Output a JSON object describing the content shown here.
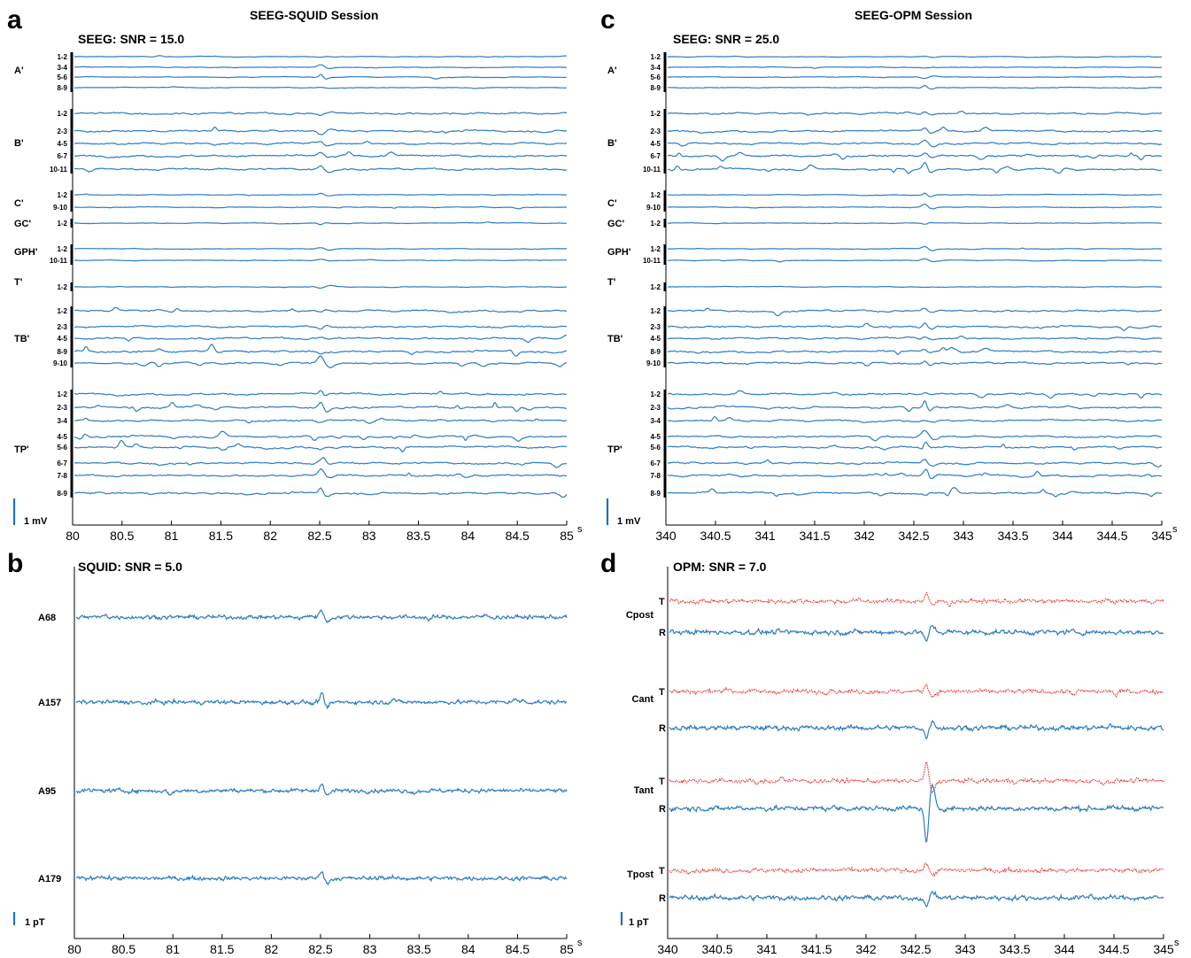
{
  "colors": {
    "trace": "#2f7dc0",
    "radial_trace": "#2f7dc0",
    "tangential_trace": "#e8342c",
    "axis": "#000000",
    "scalebar": "#1f6fbf"
  },
  "panel_labels": {
    "a": "a",
    "b": "b",
    "c": "c",
    "d": "d"
  },
  "session_titles": {
    "squid": "SEEG-SQUID Session",
    "opm": "SEEG-OPM Session"
  },
  "chart_data": [
    {
      "id": "a",
      "type": "line",
      "title": "SEEG: SNR = 15.0",
      "xlabel": "s",
      "xlim": [
        80,
        85
      ],
      "xticks": [
        "80",
        "80.5",
        "81",
        "81.5",
        "82",
        "82.5",
        "83",
        "83.5",
        "84",
        "84.5",
        "85"
      ],
      "scalebar_label": "1 mV",
      "event_x": 82.5,
      "groups": [
        {
          "name": "A'",
          "channels": [
            "1-2",
            "3-4",
            "5-6",
            "8-9"
          ]
        },
        {
          "name": "B'",
          "channels": [
            "1-2",
            "2-3",
            "4-5",
            "6-7",
            "10-11"
          ]
        },
        {
          "name": "C'",
          "channels": [
            "1-2",
            "9-10"
          ]
        },
        {
          "name": "GC'",
          "channels": [
            "1-2"
          ]
        },
        {
          "name": "GPH'",
          "channels": [
            "1-2",
            "10-11"
          ]
        },
        {
          "name": "T'",
          "channels": [
            "1-2"
          ]
        },
        {
          "name": "TB'",
          "channels": [
            "1-2",
            "2-3",
            "4-5",
            "8-9",
            "9-10"
          ]
        },
        {
          "name": "TP'",
          "channels": [
            "1-2",
            "2-3",
            "3-4",
            "4-5",
            "5-6",
            "6-7",
            "7-8",
            "8-9"
          ]
        }
      ]
    },
    {
      "id": "b",
      "type": "line",
      "title": "SQUID: SNR = 5.0",
      "xlabel": "s",
      "xlim": [
        80,
        85
      ],
      "xticks": [
        "80",
        "80.5",
        "81",
        "81.5",
        "82",
        "82.5",
        "83",
        "83.5",
        "84",
        "84.5",
        "85"
      ],
      "scalebar_label": "1 pT",
      "event_x": 82.5,
      "channels": [
        "A68",
        "A157",
        "A95",
        "A179"
      ]
    },
    {
      "id": "c",
      "type": "line",
      "title": "SEEG: SNR = 25.0",
      "xlabel": "s",
      "xlim": [
        340,
        345
      ],
      "xticks": [
        "340",
        "340.5",
        "341",
        "341.5",
        "342",
        "342.5",
        "343",
        "343.5",
        "344",
        "344.5",
        "345"
      ],
      "scalebar_label": "1 mV",
      "event_x": 342.6,
      "groups": [
        {
          "name": "A'",
          "channels": [
            "1-2",
            "3-4",
            "5-6",
            "8-9"
          ]
        },
        {
          "name": "B'",
          "channels": [
            "1-2",
            "2-3",
            "4-5",
            "6-7",
            "10-11"
          ]
        },
        {
          "name": "C'",
          "channels": [
            "1-2",
            "9-10"
          ]
        },
        {
          "name": "GC'",
          "channels": [
            "1-2"
          ]
        },
        {
          "name": "GPH'",
          "channels": [
            "1-2",
            "10-11"
          ]
        },
        {
          "name": "T'",
          "channels": [
            "1-2"
          ]
        },
        {
          "name": "TB'",
          "channels": [
            "1-2",
            "2-3",
            "4-5",
            "8-9",
            "9-10"
          ]
        },
        {
          "name": "TP'",
          "channels": [
            "1-2",
            "2-3",
            "3-4",
            "4-5",
            "5-6",
            "6-7",
            "7-8",
            "8-9"
          ]
        }
      ]
    },
    {
      "id": "d",
      "type": "line",
      "title": "OPM: SNR = 7.0",
      "xlabel": "s",
      "xlim": [
        340,
        345
      ],
      "xticks": [
        "340",
        "340.5",
        "341",
        "341.5",
        "342",
        "342.5",
        "343",
        "343.5",
        "344",
        "344.5",
        "345"
      ],
      "scalebar_label": "1 pT",
      "event_x": 342.6,
      "sensors": [
        {
          "name": "Cpost",
          "components": [
            "T",
            "R"
          ]
        },
        {
          "name": "Cant",
          "components": [
            "T",
            "R"
          ]
        },
        {
          "name": "Tant",
          "components": [
            "T",
            "R"
          ]
        },
        {
          "name": "Tpost",
          "components": [
            "T",
            "R"
          ]
        }
      ]
    }
  ]
}
